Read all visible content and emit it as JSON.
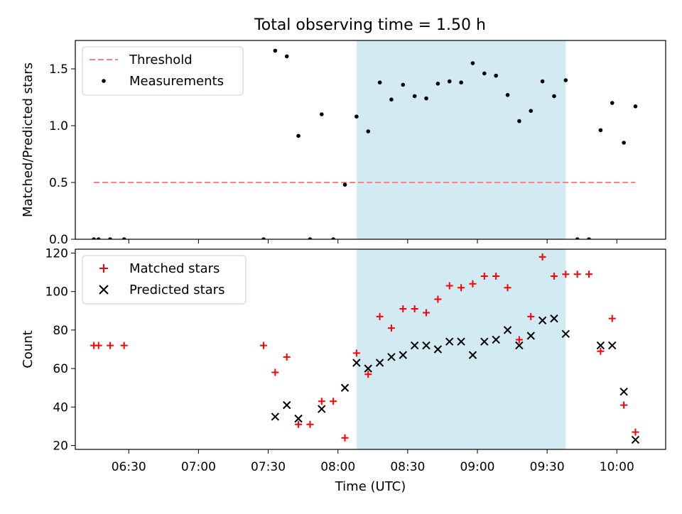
{
  "title": "Total observing time = 1.50 h",
  "colors": {
    "threshold": "#ff8080",
    "measurements": "#000000",
    "matched": "#ff0000",
    "predicted": "#000000",
    "observing_span": "#add8e6"
  },
  "chart_data": [
    {
      "type": "scatter",
      "panel": "top",
      "title": "Total observing time = 1.50 h",
      "xlabel": "",
      "ylabel": "Matched/Predicted stars",
      "xlim": [
        "06:07",
        "10:21"
      ],
      "ylim": [
        0,
        1.75
      ],
      "yticks": [
        0.0,
        0.5,
        1.0,
        1.5
      ],
      "ytick_labels": [
        "0.0",
        "0.5",
        "1.0",
        "1.5"
      ],
      "shaded_span": {
        "start": "08:08",
        "end": "09:38"
      },
      "legend": {
        "position": "top-left",
        "entries": [
          "Threshold",
          "Measurements"
        ]
      },
      "series": [
        {
          "name": "Threshold",
          "style": "dashed-line",
          "x": [
            "06:15",
            "10:08"
          ],
          "y": [
            0.5,
            0.5
          ]
        },
        {
          "name": "Measurements",
          "style": "dot",
          "x": [
            "06:15",
            "06:17",
            "06:22",
            "06:28",
            "07:28",
            "07:33",
            "07:38",
            "07:43",
            "07:48",
            "07:53",
            "07:58",
            "08:03",
            "08:08",
            "08:13",
            "08:18",
            "08:23",
            "08:28",
            "08:33",
            "08:38",
            "08:43",
            "08:48",
            "08:53",
            "08:58",
            "09:03",
            "09:08",
            "09:13",
            "09:18",
            "09:23",
            "09:28",
            "09:33",
            "09:38",
            "09:43",
            "09:48",
            "09:53",
            "09:58",
            "10:03",
            "10:08"
          ],
          "y": [
            0,
            0,
            0,
            0,
            0,
            1.66,
            1.61,
            0.91,
            0,
            1.1,
            0,
            0.48,
            1.08,
            0.95,
            1.38,
            1.23,
            1.36,
            1.26,
            1.24,
            1.37,
            1.39,
            1.38,
            1.55,
            1.46,
            1.44,
            1.27,
            1.04,
            1.13,
            1.39,
            1.26,
            1.4,
            0,
            0,
            0.96,
            1.2,
            0.85,
            1.17
          ]
        }
      ]
    },
    {
      "type": "scatter",
      "panel": "bottom",
      "xlabel": "Time (UTC)",
      "ylabel": "Count",
      "xlim": [
        "06:07",
        "10:21"
      ],
      "ylim": [
        18,
        122
      ],
      "yticks": [
        20,
        40,
        60,
        80,
        100,
        120
      ],
      "xticks": [
        "06:30",
        "07:00",
        "07:30",
        "08:00",
        "08:30",
        "09:00",
        "09:30",
        "10:00"
      ],
      "shaded_span": {
        "start": "08:08",
        "end": "09:38"
      },
      "legend": {
        "position": "top-left",
        "entries": [
          "Matched stars",
          "Predicted stars"
        ]
      },
      "series": [
        {
          "name": "Matched stars",
          "marker": "plus",
          "x": [
            "06:15",
            "06:17",
            "06:22",
            "06:28",
            "07:28",
            "07:33",
            "07:38",
            "07:43",
            "07:48",
            "07:53",
            "07:58",
            "08:03",
            "08:08",
            "08:13",
            "08:18",
            "08:23",
            "08:28",
            "08:33",
            "08:38",
            "08:43",
            "08:48",
            "08:53",
            "08:58",
            "09:03",
            "09:08",
            "09:13",
            "09:18",
            "09:23",
            "09:28",
            "09:33",
            "09:38",
            "09:43",
            "09:48",
            "09:53",
            "09:58",
            "10:03",
            "10:08"
          ],
          "y": [
            72,
            72,
            72,
            72,
            72,
            58,
            66,
            31,
            31,
            43,
            43,
            24,
            68,
            57,
            87,
            81,
            91,
            91,
            89,
            96,
            103,
            102,
            104,
            108,
            108,
            102,
            75,
            87,
            118,
            108,
            109,
            109,
            109,
            69,
            86,
            41,
            27
          ]
        },
        {
          "name": "Predicted stars",
          "marker": "x",
          "x": [
            "07:33",
            "07:38",
            "07:43",
            "07:53",
            "08:03",
            "08:08",
            "08:13",
            "08:18",
            "08:23",
            "08:28",
            "08:33",
            "08:38",
            "08:43",
            "08:48",
            "08:53",
            "08:58",
            "09:03",
            "09:08",
            "09:13",
            "09:18",
            "09:23",
            "09:28",
            "09:33",
            "09:38",
            "09:53",
            "09:58",
            "10:03",
            "10:08"
          ],
          "y": [
            35,
            41,
            34,
            39,
            50,
            63,
            60,
            63,
            66,
            67,
            72,
            72,
            70,
            74,
            74,
            67,
            74,
            75,
            80,
            72,
            77,
            85,
            86,
            78,
            72,
            72,
            48,
            23
          ]
        }
      ]
    }
  ]
}
